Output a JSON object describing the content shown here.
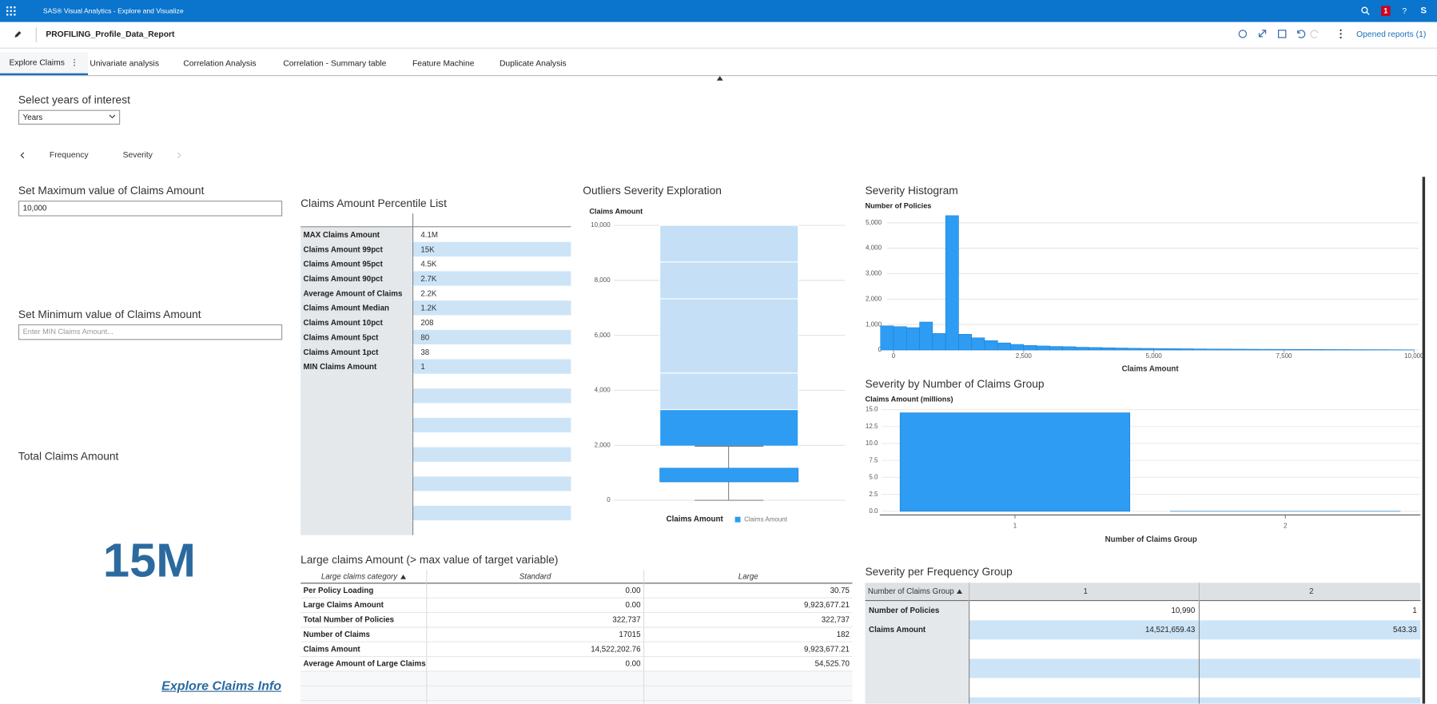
{
  "header": {
    "app_title": "SAS® Visual Analytics - Explore and Visualize",
    "badge": "1",
    "help": "?",
    "user": "S",
    "report_title": "PROFILING_Profile_Data_Report",
    "opened_reports": "Opened reports (1)"
  },
  "tabs": [
    "Explore Claims",
    "Univariate analysis",
    "Correlation Analysis",
    "Correlation - Summary table",
    "Feature Machine",
    "Duplicate Analysis"
  ],
  "year_filter": {
    "label": "Select years of interest",
    "value": "Years"
  },
  "sub_nav": [
    "Frequency",
    "Severity"
  ],
  "max_control": {
    "label": "Set Maximum value of Claims Amount",
    "value": "10,000"
  },
  "min_control": {
    "label": "Set Minimum value of Claims Amount",
    "placeholder": "Enter MIN Claims Amount..."
  },
  "total": {
    "label": "Total Claims Amount",
    "value": "15M"
  },
  "link": "Explore Claims Info",
  "percentile_list": {
    "title": "Claims Amount Percentile List",
    "rows": [
      [
        "MAX Claims Amount",
        "4.1M"
      ],
      [
        "Claims Amount 99pct",
        "15K"
      ],
      [
        "Claims Amount 95pct",
        "4.5K"
      ],
      [
        "Claims Amount 90pct",
        "2.7K"
      ],
      [
        "Average Amount of Claims",
        "2.2K"
      ],
      [
        "Claims Amount Median",
        "1.2K"
      ],
      [
        "Claims Amount 10pct",
        "208"
      ],
      [
        "Claims Amount 5pct",
        "80"
      ],
      [
        "Claims Amount 1pct",
        "38"
      ],
      [
        "MIN Claims Amount",
        "1"
      ]
    ]
  },
  "box_plot": {
    "title": "Outliers Severity Exploration",
    "y_label": "Claims Amount",
    "x_label": "Claims Amount",
    "legend": "Claims Amount",
    "color": "#2d9cf2",
    "band_color": "#c4dff6",
    "ylim": [
      0,
      10000
    ],
    "yticks": [
      0,
      {
        "value": 2000,
        "label": "2,000"
      },
      {
        "value": 4000,
        "label": "4,000"
      },
      {
        "value": 6000,
        "label": "6,000"
      },
      {
        "value": 8000,
        "label": "8,000"
      },
      {
        "value": 10000,
        "label": "10,000"
      }
    ],
    "whisker_low": 0,
    "q1": 670,
    "q3": 1170,
    "whisker_high": 1970,
    "outlier_band": [
      1970,
      3300
    ],
    "light_bands": [
      [
        3300,
        4630
      ],
      [
        4630,
        7330
      ],
      [
        7330,
        8670
      ],
      [
        8670,
        10000
      ]
    ]
  },
  "histogram": {
    "title": "Severity Histogram",
    "y_label": "Number of Policies",
    "x_label": "Claims Amount",
    "color": "#2d9cf2",
    "xlim": [
      0,
      10000
    ],
    "xticks": [
      0,
      {
        "value": 2500,
        "label": "2,500"
      },
      {
        "value": 5000,
        "label": "5,000"
      },
      {
        "value": 7500,
        "label": "7,500"
      },
      {
        "value": 10000,
        "label": "10,000"
      }
    ],
    "ylim": [
      0,
      5400
    ],
    "yticks": [
      0,
      {
        "value": 1000,
        "label": "1,000"
      },
      {
        "value": 2000,
        "label": "2,000"
      },
      {
        "value": 3000,
        "label": "3,000"
      },
      {
        "value": 4000,
        "label": "4,000"
      },
      {
        "value": 5000,
        "label": "5,000"
      }
    ],
    "bins": [
      -250,
      0,
      250,
      500,
      750,
      1000,
      1250,
      1500,
      1750,
      2000,
      2250,
      2500,
      2750,
      3000,
      3250,
      3500,
      3750,
      4000,
      4250,
      4500,
      4750,
      5000,
      5250,
      5500,
      5750,
      6000,
      6250,
      6500,
      6750,
      7000,
      7250,
      7500,
      7750,
      8000,
      8250,
      8500,
      8750,
      9000,
      9250,
      9500,
      9750,
      10000
    ],
    "counts": [
      950,
      920,
      880,
      1100,
      650,
      5280,
      620,
      480,
      370,
      280,
      220,
      180,
      160,
      140,
      130,
      110,
      100,
      90,
      80,
      70,
      65,
      60,
      55,
      50,
      45,
      40,
      38,
      35,
      32,
      30,
      28,
      26,
      24,
      22,
      20,
      18,
      16,
      15,
      14,
      12,
      10
    ]
  },
  "bar_chart": {
    "title": "Severity by Number of Claims Group",
    "y_label": "Claims Amount (millions)",
    "x_label": "Number of Claims Group",
    "color": "#2d9cf2",
    "categories": [
      "1",
      "2"
    ],
    "values": [
      14.52,
      0.000543
    ],
    "ylim": [
      0,
      15
    ],
    "yticks": [
      {
        "value": 0,
        "label": "0.0"
      },
      2.5,
      {
        "value": 5,
        "label": "5.0"
      },
      7.5,
      {
        "value": 10,
        "label": "10.0"
      },
      12.5,
      {
        "value": 15,
        "label": "15.0"
      }
    ]
  },
  "large_claims_table": {
    "title": "Large claims Amount (> max value of target variable)",
    "header": [
      "Large claims category",
      "Standard",
      "Large"
    ],
    "rows": [
      [
        "Per Policy Loading",
        "0.00",
        "30.75"
      ],
      [
        "Large Claims Amount",
        "0.00",
        "9,923,677.21"
      ],
      [
        "Total Number of Policies",
        "322,737",
        "322,737"
      ],
      [
        "Number of Claims",
        "17015",
        "182"
      ],
      [
        "Claims Amount",
        "14,522,202.76",
        "9,923,677.21"
      ],
      [
        "Average Amount of Large Claims",
        "0.00",
        "54,525.70"
      ]
    ]
  },
  "frequency_table": {
    "title": "Severity per Frequency Group",
    "header": [
      "Number of Claims Group",
      "1",
      "2"
    ],
    "rows": [
      [
        "Number of Policies",
        "10,990",
        "1"
      ],
      [
        "Claims Amount",
        "14,521,659.43",
        "543.33"
      ]
    ]
  }
}
